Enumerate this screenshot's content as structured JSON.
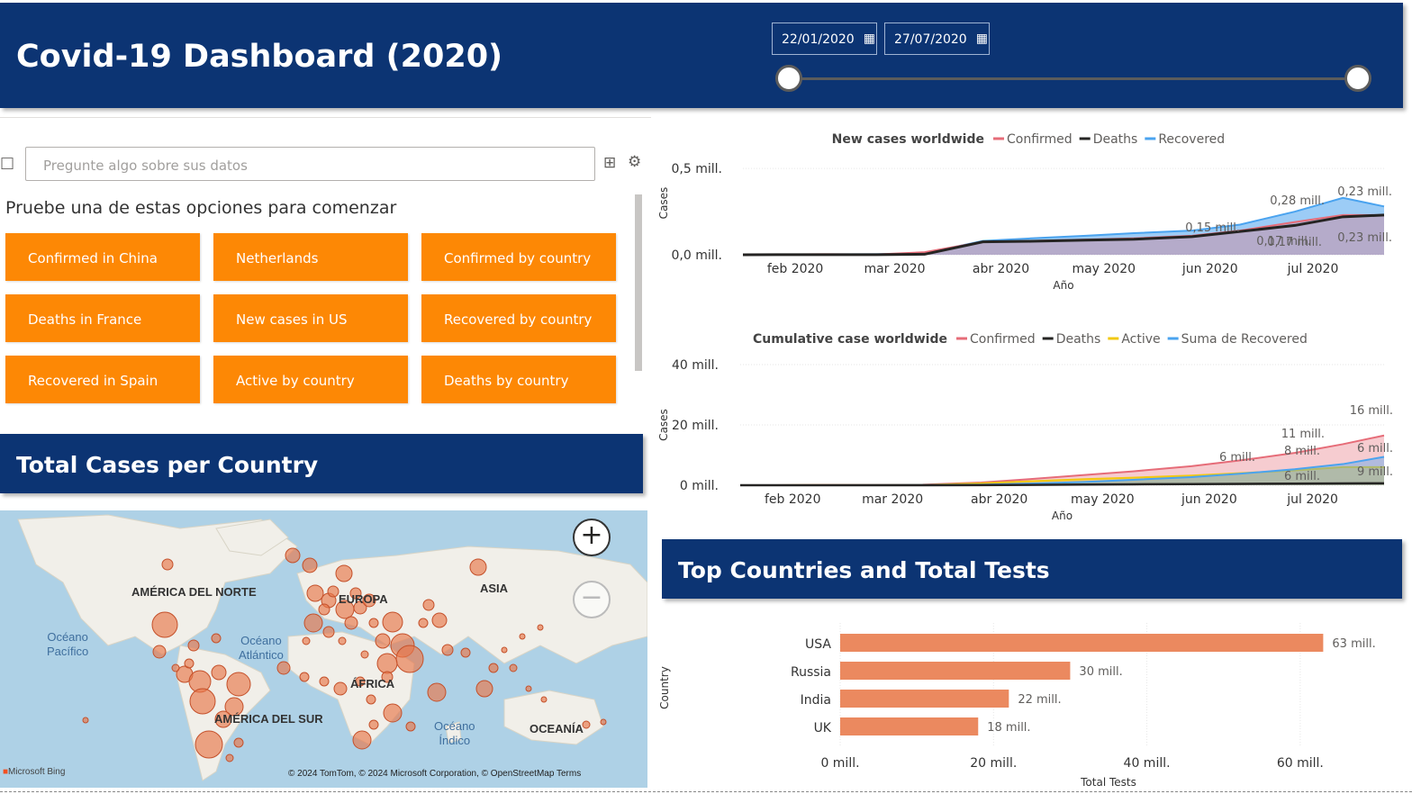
{
  "header": {
    "title": "Covid-19 Dashboard (2020)",
    "date_start": "22/01/2020",
    "date_end": "27/07/2020"
  },
  "qa": {
    "placeholder": "Pregunte algo sobre sus datos",
    "hint": "Pruebe una de estas opciones para comenzar",
    "suggestions": [
      "Confirmed in China",
      "Netherlands",
      "Confirmed by country",
      "Deaths in France",
      "New cases in US",
      "Recovered by country",
      "Recovered in Spain",
      "Active by country",
      "Deaths by country"
    ]
  },
  "map_section": {
    "title": "Total Cases per Country",
    "labels": {
      "north_america": "AMÉRICA DEL NORTE",
      "europe": "EUROPA",
      "asia": "ASIA",
      "africa": "ÁFRICA",
      "south_america": "AMÉRICA DEL SUR",
      "oceania": "OCEANÍA"
    },
    "oceans": {
      "pacific": "Océano\nPacífico",
      "atlantic": "Océano\nAtlántico",
      "indian": "Océano\nÍndico"
    },
    "attribution": "© 2024 TomTom, © 2024 Microsoft Corporation, © OpenStreetMap  Terms",
    "brand": "Microsoft Bing",
    "zoom_in": "+",
    "zoom_out": "−"
  },
  "tests_section": {
    "title": "Top Countries and Total Tests"
  },
  "colors": {
    "banner": "#0c3473",
    "accent": "#fd8805",
    "confirmed": "#e66c78",
    "deaths": "#252423",
    "recovered": "#4aa3ef",
    "active": "#f2c811",
    "bar": "#eb895f",
    "bubble": "#e8774a"
  },
  "chart_data": [
    {
      "type": "area",
      "title": "New cases worldwide",
      "xlabel": "Año",
      "ylabel": "Cases",
      "ylim": [
        0,
        600000
      ],
      "yticks": [
        "0,0 mill.",
        "0,5 mill."
      ],
      "xticks": [
        "feb 2020",
        "mar 2020",
        "abr 2020",
        "may 2020",
        "jun 2020",
        "jul 2020"
      ],
      "x": [
        "2020-01-22",
        "2020-02-01",
        "2020-02-15",
        "2020-03-01",
        "2020-03-15",
        "2020-04-01",
        "2020-04-15",
        "2020-05-01",
        "2020-05-15",
        "2020-06-01",
        "2020-06-15",
        "2020-07-01",
        "2020-07-15",
        "2020-07-27"
      ],
      "series": [
        {
          "name": "Confirmed",
          "values": [
            600,
            2500,
            3000,
            2000,
            15000,
            75000,
            80000,
            88000,
            95000,
            110000,
            140000,
            190000,
            230000,
            230000
          ]
        },
        {
          "name": "Deaths",
          "values": [
            100,
            500,
            700,
            500,
            3000,
            75000,
            78000,
            85000,
            90000,
            105000,
            135000,
            170000,
            220000,
            230000
          ]
        },
        {
          "name": "Recovered",
          "values": [
            200,
            1500,
            2500,
            3000,
            8000,
            80000,
            95000,
            110000,
            125000,
            140000,
            175000,
            250000,
            330000,
            280000
          ]
        }
      ],
      "data_labels": [
        "0,28 mill.",
        "0,23 mill.",
        "0,17 mill.",
        "0,15 mill.",
        "0,17 mill.",
        "0,23 mill."
      ]
    },
    {
      "type": "area",
      "title": "Cumulative case worldwide",
      "xlabel": "Año",
      "ylabel": "Cases",
      "ylim": [
        0,
        40000000
      ],
      "yticks": [
        "0 mill.",
        "20 mill.",
        "40 mill."
      ],
      "xticks": [
        "feb 2020",
        "mar 2020",
        "abr 2020",
        "may 2020",
        "jun 2020",
        "jul 2020"
      ],
      "x": [
        "2020-01-22",
        "2020-02-01",
        "2020-02-15",
        "2020-03-01",
        "2020-03-15",
        "2020-04-01",
        "2020-04-15",
        "2020-05-01",
        "2020-05-15",
        "2020-06-01",
        "2020-06-15",
        "2020-07-01",
        "2020-07-15",
        "2020-07-27"
      ],
      "series": [
        {
          "name": "Confirmed",
          "values": [
            600,
            12000,
            68000,
            88000,
            170000,
            900000,
            2000000,
            3400000,
            4600000,
            6300000,
            8200000,
            10700000,
            13600000,
            16500000
          ]
        },
        {
          "name": "Deaths",
          "values": [
            20,
            250,
            1700,
            3000,
            6500,
            47000,
            130000,
            235000,
            305000,
            375000,
            440000,
            520000,
            590000,
            650000
          ]
        },
        {
          "name": "Active",
          "values": [
            500,
            11000,
            55000,
            40000,
            85000,
            650000,
            1300000,
            2000000,
            2500000,
            3200000,
            4000000,
            4900000,
            6000000,
            6000000
          ]
        },
        {
          "name": "Suma de Recovered",
          "values": [
            30,
            300,
            9000,
            45000,
            78000,
            190000,
            550000,
            1100000,
            1800000,
            2700000,
            3800000,
            5300000,
            7000000,
            9400000
          ]
        }
      ],
      "data_labels": [
        "16 mill.",
        "11 mill.",
        "8 mill.",
        "6 mill.",
        "6 mill.",
        "6 mill.",
        "9 mill."
      ]
    },
    {
      "type": "bar",
      "orientation": "horizontal",
      "xlabel": "Total Tests",
      "ylabel": "Country",
      "xlim": [
        0,
        70000000
      ],
      "xticks": [
        "0 mill.",
        "20 mill.",
        "40 mill.",
        "60 mill."
      ],
      "categories": [
        "USA",
        "Russia",
        "India",
        "UK"
      ],
      "values": [
        63000000,
        30000000,
        22000000,
        18000000
      ],
      "data_labels": [
        "63 mill.",
        "30 mill.",
        "22 mill.",
        "18 mill."
      ]
    }
  ]
}
